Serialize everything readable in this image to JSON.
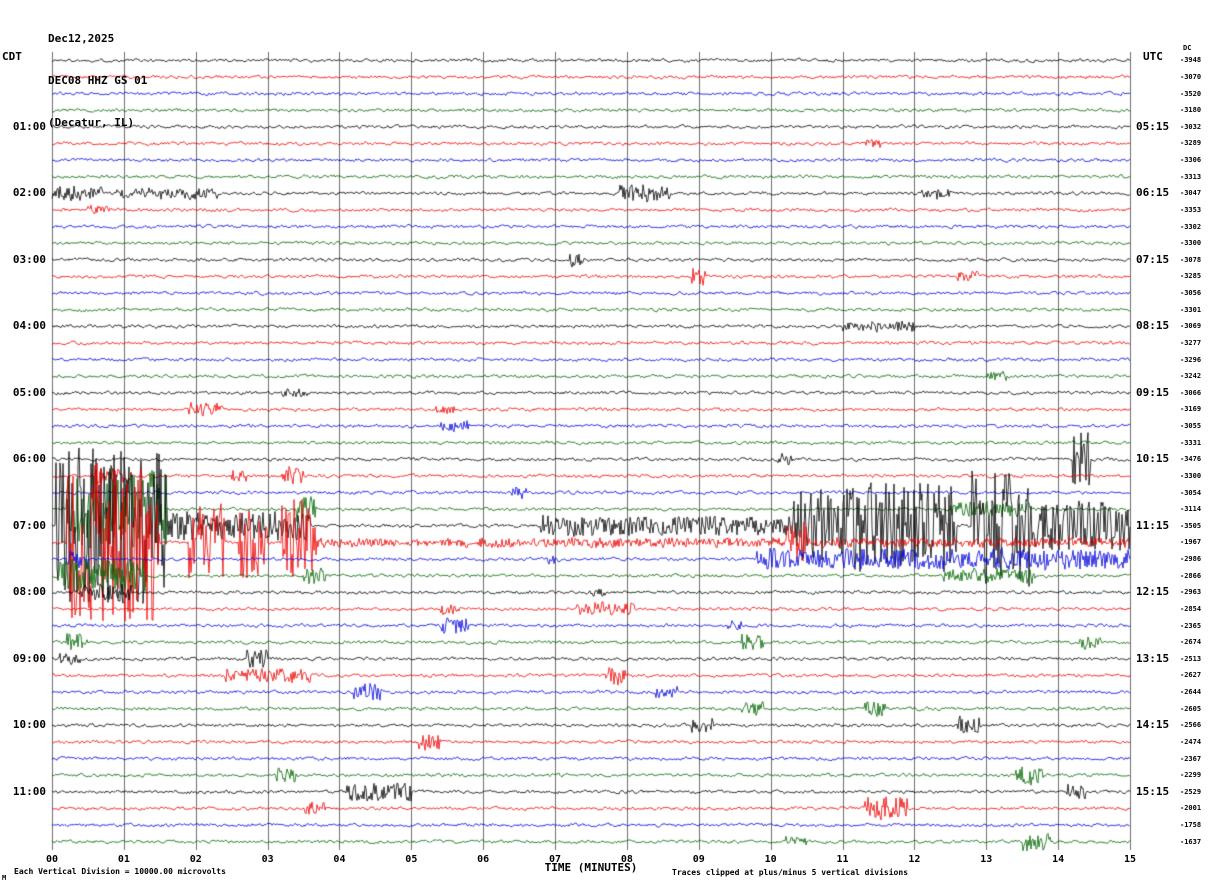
{
  "header": {
    "date": "Dec12,2025",
    "station": "DEC08 HHZ GS 01",
    "location": "(Decatur, IL)"
  },
  "axes": {
    "left_tz": "CDT",
    "right_tz": "UTC",
    "dc_label": "DC",
    "left_times": [
      "01:00",
      "02:00",
      "03:00",
      "04:00",
      "05:00",
      "06:00",
      "07:00",
      "08:00",
      "09:00",
      "10:00",
      "11:00"
    ],
    "right_times": [
      "05:15",
      "06:15",
      "07:15",
      "08:15",
      "09:15",
      "10:15",
      "11:15",
      "12:15",
      "13:15",
      "14:15",
      "15:15"
    ],
    "x_ticks": [
      "00",
      "01",
      "02",
      "03",
      "04",
      "05",
      "06",
      "07",
      "08",
      "09",
      "10",
      "11",
      "12",
      "13",
      "14",
      "15"
    ],
    "x_label": "TIME (MINUTES)"
  },
  "footer": {
    "scale_note": "Each Vertical Division = 10000.00 microvolts",
    "clip_note": "Traces clipped at plus/minus 5 vertical divisions",
    "watermark": "M"
  },
  "chart_data": {
    "type": "line",
    "subtype": "helicorder-seismogram",
    "title": "DEC08 HHZ GS 01 (Decatur, IL) Dec12,2025",
    "xlabel": "TIME (MINUTES)",
    "x_range": [
      0,
      15
    ],
    "rows": 48,
    "minutes_per_row": 15,
    "start_time_left": "00:00 CDT",
    "row_colors_cycle": [
      "#000000",
      "#ee0000",
      "#0000dd",
      "#006600"
    ],
    "grid": true,
    "clip_divisions": 5,
    "division_microvolts": 10000.0,
    "dc_values": [
      "-3948",
      "-3070",
      "-3520",
      "-3180",
      "-3032",
      "-3289",
      "-3306",
      "-3313",
      "-3047",
      "-3353",
      "-3302",
      "-3300",
      "-3078",
      "-3285",
      "-3056",
      "-3301",
      "-3069",
      "-3277",
      "-3296",
      "-3242",
      "-3066",
      "-3169",
      "-3055",
      "-3331",
      "-3476",
      "-3300",
      "-3054",
      "-3114",
      "-3505",
      "-1967",
      "-2986",
      "-2866",
      "-2963",
      "-2854",
      "-2365",
      "-2674",
      "-2513",
      "-2627",
      "-2644",
      "-2605",
      "-2566",
      "-2474",
      "-2367",
      "-2299",
      "-2529",
      "-2001",
      "-1758",
      "-1637"
    ],
    "noise": {
      "seed": 1337,
      "base_amp": 1.3,
      "smooth": 0.5
    },
    "events": [
      {
        "row": 5,
        "start": 11.3,
        "end": 11.6,
        "amp": 4
      },
      {
        "row": 8,
        "start": 0.0,
        "end": 0.7,
        "amp": 7
      },
      {
        "row": 8,
        "start": 0.9,
        "end": 2.3,
        "amp": 5
      },
      {
        "row": 8,
        "start": 7.9,
        "end": 8.6,
        "amp": 8
      },
      {
        "row": 8,
        "start": 12.1,
        "end": 12.5,
        "amp": 5
      },
      {
        "row": 9,
        "start": 0.5,
        "end": 0.8,
        "amp": 5
      },
      {
        "row": 12,
        "start": 7.2,
        "end": 7.4,
        "amp": 6
      },
      {
        "row": 13,
        "start": 8.9,
        "end": 9.1,
        "amp": 9
      },
      {
        "row": 13,
        "start": 12.6,
        "end": 12.9,
        "amp": 5
      },
      {
        "row": 16,
        "start": 11.0,
        "end": 12.0,
        "amp": 5
      },
      {
        "row": 19,
        "start": 13.0,
        "end": 13.3,
        "amp": 5
      },
      {
        "row": 20,
        "start": 3.2,
        "end": 3.6,
        "amp": 4
      },
      {
        "row": 21,
        "start": 1.9,
        "end": 2.4,
        "amp": 6
      },
      {
        "row": 21,
        "start": 5.3,
        "end": 5.6,
        "amp": 4
      },
      {
        "row": 22,
        "start": 5.4,
        "end": 5.8,
        "amp": 5
      },
      {
        "row": 24,
        "start": 10.1,
        "end": 10.3,
        "amp": 6
      },
      {
        "row": 24,
        "start": 14.2,
        "end": 14.45,
        "amp": 28
      },
      {
        "row": 25,
        "start": 0.6,
        "end": 1.1,
        "amp": 9
      },
      {
        "row": 25,
        "start": 2.5,
        "end": 2.7,
        "amp": 7
      },
      {
        "row": 25,
        "start": 3.2,
        "end": 3.5,
        "amp": 9
      },
      {
        "row": 26,
        "start": 6.4,
        "end": 6.6,
        "amp": 6
      },
      {
        "row": 27,
        "start": 0.2,
        "end": 1.6,
        "amp": 40
      },
      {
        "row": 27,
        "start": 3.4,
        "end": 3.7,
        "amp": 14
      },
      {
        "row": 27,
        "start": 12.5,
        "end": 13.6,
        "amp": 7
      },
      {
        "row": 28,
        "start": 0.05,
        "end": 1.6,
        "amp": 80
      },
      {
        "row": 28,
        "start": 1.6,
        "end": 3.6,
        "amp": 14
      },
      {
        "row": 28,
        "start": 6.8,
        "end": 10.3,
        "amp": 10
      },
      {
        "row": 28,
        "start": 10.3,
        "end": 12.6,
        "amp": 45
      },
      {
        "row": 28,
        "start": 12.8,
        "end": 13.6,
        "amp": 60
      },
      {
        "row": 28,
        "start": 13.6,
        "end": 15,
        "amp": 25
      },
      {
        "row": 29,
        "start": 0.2,
        "end": 1.5,
        "amp": 80
      },
      {
        "row": 29,
        "start": 1.9,
        "end": 2.4,
        "amp": 40
      },
      {
        "row": 29,
        "start": 2.6,
        "end": 3.0,
        "amp": 35
      },
      {
        "row": 29,
        "start": 3.2,
        "end": 3.7,
        "amp": 45
      },
      {
        "row": 29,
        "start": 3.7,
        "end": 15,
        "amp": 4
      },
      {
        "row": 29,
        "start": 10.2,
        "end": 10.5,
        "amp": 18
      },
      {
        "row": 30,
        "start": 0.2,
        "end": 0.5,
        "amp": 8
      },
      {
        "row": 30,
        "start": 6.9,
        "end": 7.1,
        "amp": 6
      },
      {
        "row": 30,
        "start": 9.8,
        "end": 15,
        "amp": 10
      },
      {
        "row": 31,
        "start": 0.1,
        "end": 1.3,
        "amp": 16
      },
      {
        "row": 31,
        "start": 3.5,
        "end": 3.8,
        "amp": 9
      },
      {
        "row": 31,
        "start": 12.4,
        "end": 13.7,
        "amp": 7
      },
      {
        "row": 32,
        "start": 0.4,
        "end": 1.1,
        "amp": 8
      },
      {
        "row": 32,
        "start": 7.5,
        "end": 7.7,
        "amp": 5
      },
      {
        "row": 33,
        "start": 5.4,
        "end": 5.7,
        "amp": 5
      },
      {
        "row": 33,
        "start": 7.3,
        "end": 8.1,
        "amp": 6
      },
      {
        "row": 34,
        "start": 5.4,
        "end": 5.8,
        "amp": 8
      },
      {
        "row": 34,
        "start": 9.4,
        "end": 9.6,
        "amp": 5
      },
      {
        "row": 35,
        "start": 0.2,
        "end": 0.5,
        "amp": 10
      },
      {
        "row": 35,
        "start": 9.6,
        "end": 9.9,
        "amp": 9
      },
      {
        "row": 35,
        "start": 14.3,
        "end": 14.6,
        "amp": 7
      },
      {
        "row": 36,
        "start": 0.1,
        "end": 0.4,
        "amp": 6
      },
      {
        "row": 36,
        "start": 2.7,
        "end": 3.0,
        "amp": 10
      },
      {
        "row": 37,
        "start": 2.4,
        "end": 3.6,
        "amp": 7
      },
      {
        "row": 37,
        "start": 7.7,
        "end": 8.0,
        "amp": 9
      },
      {
        "row": 38,
        "start": 4.2,
        "end": 4.6,
        "amp": 9
      },
      {
        "row": 38,
        "start": 8.4,
        "end": 8.7,
        "amp": 5
      },
      {
        "row": 39,
        "start": 9.6,
        "end": 9.9,
        "amp": 7
      },
      {
        "row": 39,
        "start": 11.3,
        "end": 11.6,
        "amp": 8
      },
      {
        "row": 40,
        "start": 8.9,
        "end": 9.2,
        "amp": 7
      },
      {
        "row": 40,
        "start": 12.6,
        "end": 12.9,
        "amp": 9
      },
      {
        "row": 41,
        "start": 5.1,
        "end": 5.4,
        "amp": 8
      },
      {
        "row": 43,
        "start": 3.1,
        "end": 3.4,
        "amp": 7
      },
      {
        "row": 43,
        "start": 13.4,
        "end": 13.8,
        "amp": 9
      },
      {
        "row": 44,
        "start": 4.1,
        "end": 5.0,
        "amp": 9
      },
      {
        "row": 44,
        "start": 14.1,
        "end": 14.4,
        "amp": 7
      },
      {
        "row": 45,
        "start": 3.5,
        "end": 3.8,
        "amp": 6
      },
      {
        "row": 45,
        "start": 11.3,
        "end": 11.9,
        "amp": 12
      },
      {
        "row": 47,
        "start": 10.2,
        "end": 10.5,
        "amp": 6
      },
      {
        "row": 47,
        "start": 13.5,
        "end": 13.9,
        "amp": 8
      }
    ]
  }
}
